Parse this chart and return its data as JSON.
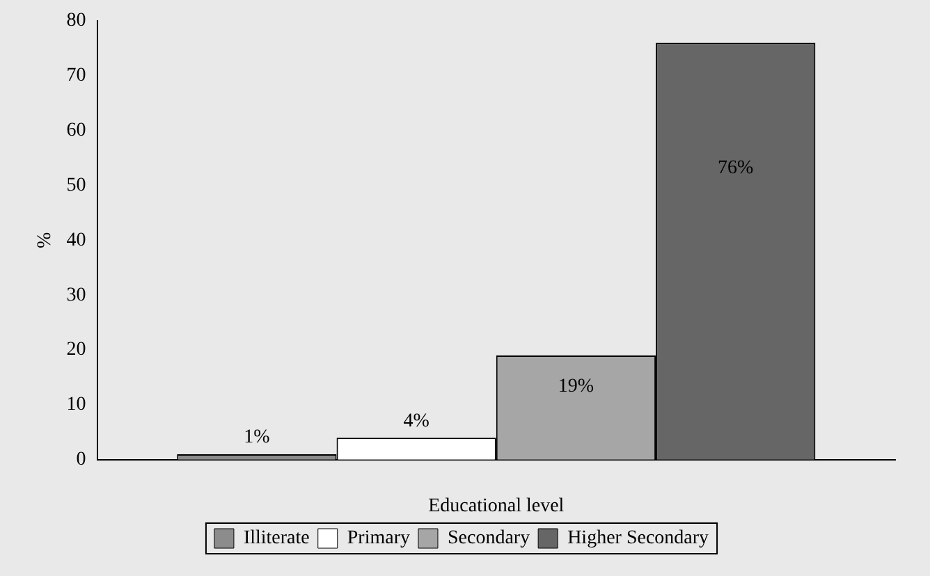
{
  "chart_data": {
    "type": "bar",
    "xlabel": "Educational level",
    "ylabel": "%",
    "categories": [
      null
    ],
    "series": [
      {
        "name": "Illiterate",
        "color": "#8c8c8c",
        "values": [
          1
        ],
        "value_labels": [
          "1%"
        ]
      },
      {
        "name": "Primary",
        "color": "#ffffff",
        "values": [
          4
        ],
        "value_labels": [
          "4%"
        ]
      },
      {
        "name": "Secondary",
        "color": "#a6a6a6",
        "values": [
          19
        ],
        "value_labels": [
          "19%"
        ]
      },
      {
        "name": "Higher Secondary",
        "color": "#666666",
        "values": [
          76
        ],
        "value_labels": [
          "76%"
        ]
      }
    ],
    "ylim": [
      0,
      80
    ],
    "yticks": [
      0,
      10,
      20,
      30,
      40,
      50,
      60,
      70,
      80
    ],
    "grid": false,
    "legend": "bottom"
  }
}
